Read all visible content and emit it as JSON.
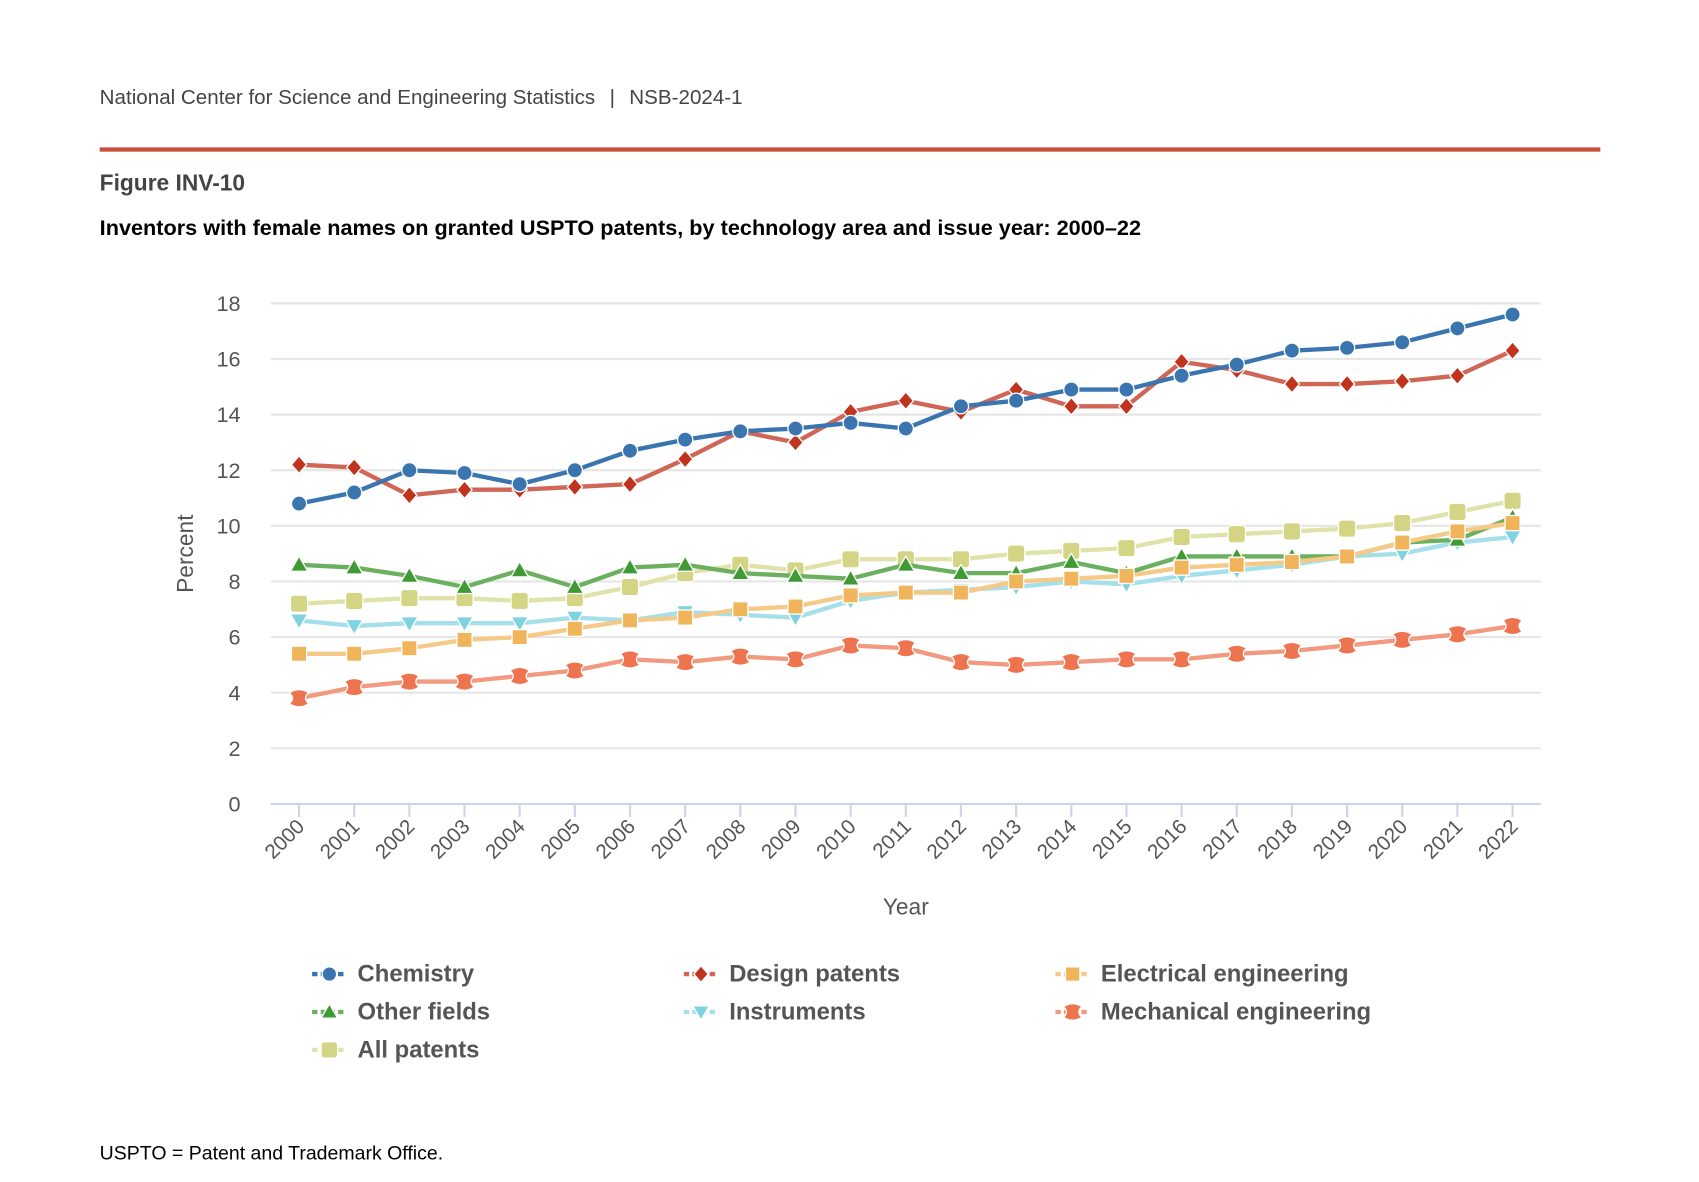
{
  "header": {
    "source": "National Center for Science and Engineering Statistics",
    "separator": "|",
    "report": "NSB-2024-1"
  },
  "figure_label": "Figure INV-10",
  "footnote": "USPTO = Patent and Trademark Office.",
  "chart_data": {
    "type": "line",
    "title": "Inventors with female names on granted USPTO patents, by technology area and issue year: 2000–22",
    "xlabel": "Year",
    "ylabel": "Percent",
    "ylim": [
      0,
      18
    ],
    "yticks": [
      0,
      2,
      4,
      6,
      8,
      10,
      12,
      14,
      16,
      18
    ],
    "grid": true,
    "legend_position": "bottom",
    "x": [
      "2000",
      "2001",
      "2002",
      "2003",
      "2004",
      "2005",
      "2006",
      "2007",
      "2008",
      "2009",
      "2010",
      "2011",
      "2012",
      "2013",
      "2014",
      "2015",
      "2016",
      "2017",
      "2018",
      "2019",
      "2020",
      "2021",
      "2022"
    ],
    "series": [
      {
        "name": "Chemistry",
        "color": "#3a75b0",
        "line_color": "#3a75b0",
        "marker": "circle",
        "values": [
          10.8,
          11.2,
          12.0,
          11.9,
          11.5,
          12.0,
          12.7,
          13.1,
          13.4,
          13.5,
          13.7,
          13.5,
          14.3,
          14.5,
          14.9,
          14.9,
          15.4,
          15.8,
          16.3,
          16.4,
          16.6,
          17.1,
          17.6
        ]
      },
      {
        "name": "Design patents",
        "color": "#c0341d",
        "line_color": "#cf6656",
        "marker": "diamond",
        "values": [
          12.2,
          12.1,
          11.1,
          11.3,
          11.3,
          11.4,
          11.5,
          12.4,
          13.4,
          13.0,
          14.1,
          14.5,
          14.1,
          14.9,
          14.3,
          14.3,
          15.9,
          15.6,
          15.1,
          15.1,
          15.2,
          15.4,
          16.3
        ]
      },
      {
        "name": "Electrical engineering",
        "color": "#f0b55b",
        "line_color": "#f5c987",
        "marker": "square",
        "values": [
          5.4,
          5.4,
          5.6,
          5.9,
          6.0,
          6.3,
          6.6,
          6.7,
          7.0,
          7.1,
          7.5,
          7.6,
          7.6,
          8.0,
          8.1,
          8.2,
          8.5,
          8.6,
          8.7,
          8.9,
          9.4,
          9.8,
          10.1
        ]
      },
      {
        "name": "Other fields",
        "color": "#3f9a34",
        "line_color": "#6ab05f",
        "marker": "triangle-up",
        "values": [
          8.6,
          8.5,
          8.2,
          7.8,
          8.4,
          7.8,
          8.5,
          8.6,
          8.3,
          8.2,
          8.1,
          8.6,
          8.3,
          8.3,
          8.7,
          8.3,
          8.9,
          8.9,
          8.9,
          8.9,
          9.4,
          9.5,
          10.3
        ]
      },
      {
        "name": "Instruments",
        "color": "#7fd3e0",
        "line_color": "#a5e0ea",
        "marker": "triangle-down",
        "values": [
          6.6,
          6.4,
          6.5,
          6.5,
          6.5,
          6.7,
          6.6,
          6.9,
          6.8,
          6.7,
          7.3,
          7.6,
          7.7,
          7.8,
          8.0,
          7.9,
          8.2,
          8.4,
          8.6,
          8.9,
          9.0,
          9.4,
          9.6
        ]
      },
      {
        "name": "Mechanical engineering",
        "color": "#ee7450",
        "line_color": "#f29a80",
        "marker": "double-circle",
        "values": [
          3.8,
          4.2,
          4.4,
          4.4,
          4.6,
          4.8,
          5.2,
          5.1,
          5.3,
          5.2,
          5.7,
          5.6,
          5.1,
          5.0,
          5.1,
          5.2,
          5.2,
          5.4,
          5.5,
          5.7,
          5.9,
          6.1,
          6.4
        ]
      },
      {
        "name": "All patents",
        "color": "#d3d585",
        "line_color": "#e1e2aa",
        "marker": "rounded-square",
        "values": [
          7.2,
          7.3,
          7.4,
          7.4,
          7.3,
          7.4,
          7.8,
          8.3,
          8.6,
          8.4,
          8.8,
          8.8,
          8.8,
          9.0,
          9.1,
          9.2,
          9.6,
          9.7,
          9.8,
          9.9,
          10.1,
          10.5,
          10.9
        ]
      }
    ]
  }
}
